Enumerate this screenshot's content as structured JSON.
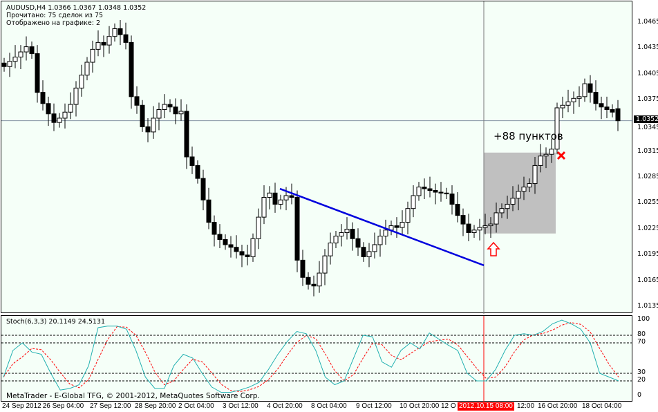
{
  "header": {
    "symbol_line": "AUDUSD,H4  1.0366 1.0367 1.0348 1.0352",
    "read_line": "Прочитано: 75 сделок из 75",
    "shown_line": "Отображено на графике: 2"
  },
  "price_axis": [
    "1.0465",
    "1.0435",
    "1.0405",
    "1.0375",
    "1.0345",
    "1.0315",
    "1.0285",
    "1.0255",
    "1.0225",
    "1.0195",
    "1.0165",
    "1.0135"
  ],
  "current_price": "1.0352",
  "annotation": {
    "profit_text": "+88 пунктов"
  },
  "candles": {
    "last_ohlc": [
      1.0366,
      1.0367,
      1.0348,
      1.0352
    ],
    "closes": [
      1.0415,
      1.0421,
      1.0426,
      1.0432,
      1.0438,
      1.043,
      1.0385,
      1.0372,
      1.036,
      1.035,
      1.0355,
      1.0362,
      1.0371,
      1.039,
      1.0405,
      1.042,
      1.0435,
      1.0443,
      1.044,
      1.045,
      1.0459,
      1.0452,
      1.0443,
      1.038,
      1.037,
      1.0345,
      1.0339,
      1.0355,
      1.0365,
      1.0371,
      1.0368,
      1.036,
      1.0363,
      1.031,
      1.03,
      1.0285,
      1.026,
      1.0234,
      1.022,
      1.0214,
      1.0208,
      1.0205,
      1.02,
      1.0196,
      1.0194,
      1.0215,
      1.024,
      1.0263,
      1.0268,
      1.0255,
      1.026,
      1.0265,
      1.0263,
      1.019,
      1.017,
      1.0162,
      1.016,
      1.0175,
      1.0195,
      1.021,
      1.0218,
      1.0222,
      1.0226,
      1.0215,
      1.0205,
      1.0194,
      1.02,
      1.0208,
      1.0218,
      1.0225,
      1.023,
      1.0228,
      1.0234,
      1.025,
      1.0265,
      1.0275,
      1.0273,
      1.0271,
      1.0269,
      1.0268,
      1.0267,
      1.0255,
      1.0242,
      1.0232,
      1.0222,
      1.0225,
      1.0228,
      1.023,
      1.0232,
      1.0245,
      1.025,
      1.0255,
      1.0262,
      1.027,
      1.0275,
      1.0279,
      1.03,
      1.0311,
      1.0313,
      1.0319,
      1.0367,
      1.037,
      1.0374,
      1.0378,
      1.038,
      1.0395,
      1.0385,
      1.0372,
      1.0368,
      1.0365,
      1.0362,
      1.0352
    ]
  },
  "trendline": {
    "color": "#0000dd",
    "from_price": 1.0273,
    "to_price": 1.0184
  },
  "trade_box": {
    "entry_time": "2012.10.15 08:00",
    "high_price": 1.0315,
    "low_price": 1.0221,
    "color": "#c0c0c0"
  },
  "stoch": {
    "label": "Stoch(6,3,3) 20.1149 24.5131",
    "k_color": "#20b0b0",
    "d_color": "#ff0000",
    "levels": [
      "100",
      "80",
      "70",
      "30",
      "20",
      "0"
    ],
    "k": [
      25,
      60,
      70,
      58,
      55,
      30,
      8,
      10,
      15,
      40,
      90,
      92,
      92,
      88,
      60,
      25,
      10,
      10,
      40,
      55,
      50,
      30,
      12,
      5,
      5,
      8,
      12,
      18,
      35,
      55,
      72,
      85,
      82,
      60,
      25,
      15,
      20,
      50,
      80,
      78,
      45,
      38,
      60,
      70,
      62,
      83,
      75,
      67,
      60,
      30,
      20,
      20,
      35,
      60,
      80,
      82,
      80,
      85,
      95,
      100,
      95,
      88,
      70,
      30,
      25,
      20
    ]
  },
  "time_axis": [
    "24 Sep 2012",
    "26 Sep 04:00",
    "27 Sep 12:00",
    "28 Sep 20:00",
    "2 Oct 04:00",
    "3 Oct 12:00",
    "4 Oct 20:00",
    "8 Oct 04:00",
    "9 Oct 12:00",
    "10 Oct 20:00",
    "12 O",
    "2012.10.15 08:00",
    "12:00",
    "16 Oct 20:00",
    "18 Oct 04:00"
  ],
  "footer": "MetaTrader - E-Global TFG, © 2001-2012, MetaQuotes Software Corp."
}
